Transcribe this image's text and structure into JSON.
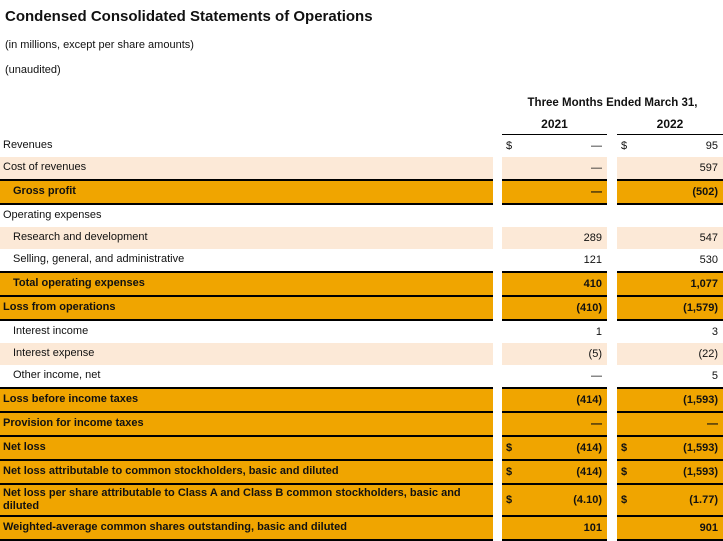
{
  "title": "Condensed Consolidated Statements of Operations",
  "subtitle_units": "(in millions, except per share amounts)",
  "subtitle_audit": "(unaudited)",
  "colors": {
    "row_highlight_orange": "#F0A500",
    "row_alternate_peach": "#FCE9D7",
    "border_black": "#000000"
  },
  "table": {
    "period_header": "Three Months Ended March 31,",
    "columns": [
      "2021",
      "2022"
    ],
    "currency_symbol": "$",
    "rows": [
      {
        "label": "Revenues",
        "style": "white",
        "indent": 0,
        "dollar": true,
        "values": [
          "—",
          "95"
        ]
      },
      {
        "label": "Cost of revenues",
        "style": "peach",
        "indent": 0,
        "dollar": false,
        "values": [
          "—",
          "597"
        ]
      },
      {
        "label": "Gross profit",
        "style": "orange",
        "indent": 1,
        "dollar": false,
        "values": [
          "—",
          "(502)"
        ]
      },
      {
        "label": "Operating expenses",
        "style": "white",
        "indent": 0,
        "dollar": false,
        "values": [
          "",
          ""
        ]
      },
      {
        "label": "Research and development",
        "style": "peach",
        "indent": 1,
        "dollar": false,
        "values": [
          "289",
          "547"
        ]
      },
      {
        "label": "Selling, general, and administrative",
        "style": "white",
        "indent": 1,
        "dollar": false,
        "values": [
          "121",
          "530"
        ]
      },
      {
        "label": "Total operating expenses",
        "style": "orange",
        "indent": 1,
        "dollar": false,
        "values": [
          "410",
          "1,077"
        ]
      },
      {
        "label": "Loss from operations",
        "style": "orange",
        "indent": 0,
        "dollar": false,
        "values": [
          "(410)",
          "(1,579)"
        ]
      },
      {
        "label": "Interest income",
        "style": "white",
        "indent": 1,
        "dollar": false,
        "values": [
          "1",
          "3"
        ]
      },
      {
        "label": "Interest expense",
        "style": "peach",
        "indent": 1,
        "dollar": false,
        "values": [
          "(5)",
          "(22)"
        ]
      },
      {
        "label": "Other income, net",
        "style": "white",
        "indent": 1,
        "dollar": false,
        "values": [
          "—",
          "5"
        ]
      },
      {
        "label": "Loss before income taxes",
        "style": "orange",
        "indent": 0,
        "dollar": false,
        "values": [
          "(414)",
          "(1,593)"
        ]
      },
      {
        "label": "Provision for income taxes",
        "style": "orange",
        "indent": 0,
        "dollar": false,
        "values": [
          "—",
          "—"
        ]
      },
      {
        "label": "Net loss",
        "style": "orange",
        "indent": 0,
        "dollar": true,
        "values": [
          "(414)",
          "(1,593)"
        ]
      },
      {
        "label": "Net loss attributable to common stockholders, basic and diluted",
        "style": "orange",
        "indent": 0,
        "dollar": true,
        "values": [
          "(414)",
          "(1,593)"
        ]
      },
      {
        "label": "Net loss per share attributable to Class A and Class B common stockholders, basic and diluted",
        "style": "orange",
        "indent": 0,
        "dollar": true,
        "values": [
          "(4.10)",
          "(1.77)"
        ]
      },
      {
        "label": "Weighted-average common shares outstanding, basic and diluted",
        "style": "orange",
        "indent": 0,
        "dollar": false,
        "values": [
          "101",
          "901"
        ]
      }
    ]
  }
}
